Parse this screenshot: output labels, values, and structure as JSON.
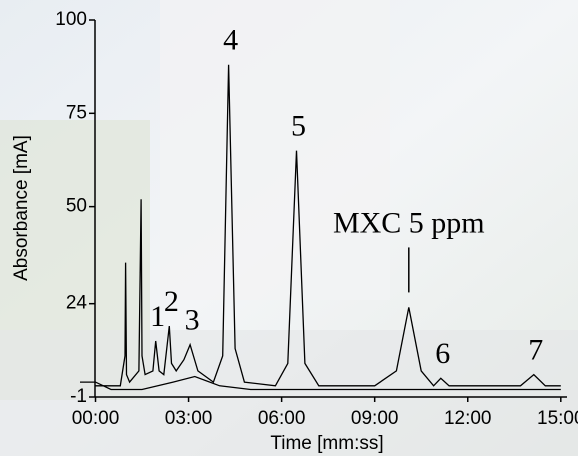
{
  "chart_data": {
    "type": "line",
    "xlabel": "Time [mm:ss]",
    "ylabel": "Absorbance [mA]",
    "xlim": [
      -0.5,
      15.2
    ],
    "ylim": [
      -1,
      100
    ],
    "xticks": [
      {
        "value": 0,
        "label": "00:00"
      },
      {
        "value": 3,
        "label": "03:00"
      },
      {
        "value": 6,
        "label": "06:00"
      },
      {
        "value": 9,
        "label": "09:00"
      },
      {
        "value": 12,
        "label": "12:00"
      },
      {
        "value": 15,
        "label": "15:00"
      }
    ],
    "yticks": [
      -1,
      24,
      50,
      75,
      100
    ],
    "series": [
      {
        "color": "#000000",
        "x": [
          0,
          0.8,
          0.95,
          0.97,
          1.0,
          1.1,
          1.4,
          1.47,
          1.5,
          1.6,
          1.85,
          1.94,
          2.05,
          2.2,
          2.38,
          2.45,
          2.6,
          2.85,
          3.05,
          3.3,
          3.8,
          4.1,
          4.29,
          4.5,
          4.8,
          5.8,
          6.2,
          6.48,
          6.75,
          7.2,
          9.0,
          9.7,
          10.1,
          10.5,
          10.9,
          11.13,
          11.4,
          12,
          13.7,
          14.13,
          14.5,
          15
        ],
        "values": [
          2,
          2,
          10,
          35,
          5,
          3,
          6,
          52,
          10,
          5,
          6,
          14,
          6,
          5,
          18,
          8,
          6,
          9,
          13,
          6,
          3,
          10,
          88,
          12,
          3,
          2,
          8,
          65,
          8,
          2,
          2,
          6,
          23,
          6,
          2,
          4,
          2,
          2,
          2,
          5,
          2,
          2
        ]
      },
      {
        "color": "#000000",
        "x": [
          -0.5,
          0,
          0.5,
          1.5,
          2.5,
          3.2,
          4,
          5,
          15
        ],
        "values": [
          3,
          3,
          1,
          1,
          3,
          4.5,
          2,
          1,
          1
        ]
      }
    ],
    "annotations": [
      {
        "text": "1",
        "x": 1.94,
        "y": 14
      },
      {
        "text": "2",
        "x": 2.38,
        "y": 18
      },
      {
        "text": "3",
        "x": 3.05,
        "y": 13
      },
      {
        "text": "4",
        "x": 4.29,
        "y": 88
      },
      {
        "text": "5",
        "x": 6.48,
        "y": 65
      },
      {
        "text": "MXC 5 ppm",
        "x": 10.1,
        "y": 23
      },
      {
        "text": "6",
        "x": 11.13,
        "y": 4
      },
      {
        "text": "7",
        "x": 14.13,
        "y": 5
      }
    ]
  }
}
